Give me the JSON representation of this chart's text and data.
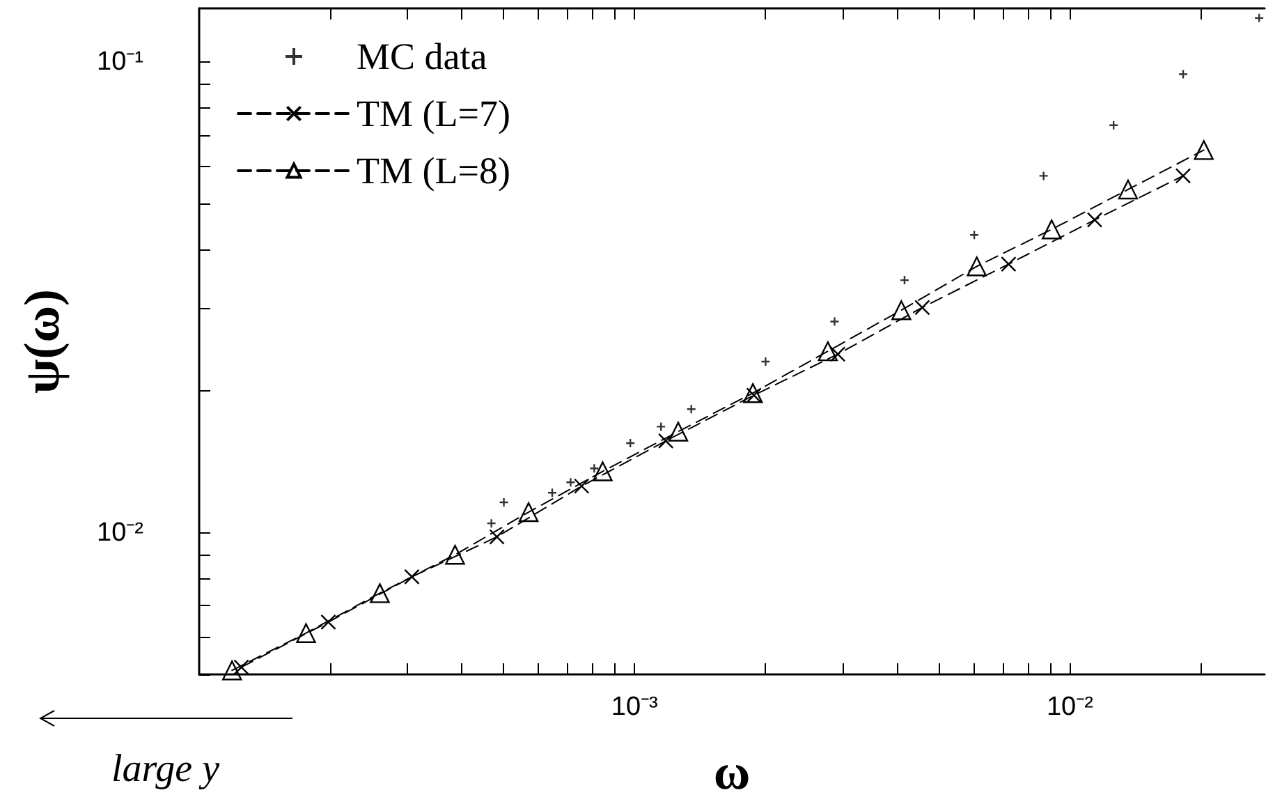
{
  "chart_data": {
    "type": "scatter",
    "xlabel": "ω",
    "ylabel": "ψ(ω)",
    "log": "xy",
    "grid": false,
    "legend": "top left",
    "xlim": [
      0.0001,
      0.028
    ],
    "ylim": [
      0.005,
      0.13
    ],
    "xticks": [
      {
        "value": 0.0002,
        "label": null
      },
      {
        "value": 0.0003,
        "label": null
      },
      {
        "value": 0.0004,
        "label": null
      },
      {
        "value": 0.0005,
        "label": null
      },
      {
        "value": 0.0006,
        "label": null
      },
      {
        "value": 0.0007,
        "label": null
      },
      {
        "value": 0.0008,
        "label": null
      },
      {
        "value": 0.0009,
        "label": null
      },
      {
        "value": 0.001,
        "label": "10⁻³"
      },
      {
        "value": 0.002,
        "label": null
      },
      {
        "value": 0.003,
        "label": null
      },
      {
        "value": 0.004,
        "label": null
      },
      {
        "value": 0.005,
        "label": null
      },
      {
        "value": 0.006,
        "label": null
      },
      {
        "value": 0.007,
        "label": null
      },
      {
        "value": 0.008,
        "label": null
      },
      {
        "value": 0.009,
        "label": null
      },
      {
        "value": 0.01,
        "label": "10⁻²"
      },
      {
        "value": 0.02,
        "label": null
      }
    ],
    "yticks": [
      {
        "value": 0.005,
        "label": null
      },
      {
        "value": 0.006,
        "label": null
      },
      {
        "value": 0.007,
        "label": null
      },
      {
        "value": 0.008,
        "label": null
      },
      {
        "value": 0.009,
        "label": null
      },
      {
        "value": 0.01,
        "label": "10⁻²"
      },
      {
        "value": 0.02,
        "label": null
      },
      {
        "value": 0.03,
        "label": null
      },
      {
        "value": 0.04,
        "label": null
      },
      {
        "value": 0.05,
        "label": null
      },
      {
        "value": 0.06,
        "label": null
      },
      {
        "value": 0.07,
        "label": null
      },
      {
        "value": 0.08,
        "label": null
      },
      {
        "value": 0.09,
        "label": null
      },
      {
        "value": 0.1,
        "label": "10⁻¹"
      }
    ],
    "annotations": [
      "large y"
    ],
    "series": [
      {
        "name": "MC data",
        "marker": "cross",
        "color": "#000000",
        "x": [
          0.000469,
          0.000501,
          0.000647,
          0.000713,
          0.000808,
          0.000978,
          0.00115,
          0.00135,
          0.002,
          0.00288,
          0.00417,
          0.00603,
          0.0087,
          0.0126,
          0.0182,
          0.0272
        ],
        "values": [
          0.01047,
          0.0116,
          0.01216,
          0.0128,
          0.0137,
          0.0155,
          0.0168,
          0.0183,
          0.0231,
          0.0281,
          0.0344,
          0.0429,
          0.0573,
          0.0734,
          0.0942,
          0.124
        ]
      },
      {
        "name": "TM (L=7)",
        "type": "line",
        "marker": "x",
        "line_style": "dashed",
        "color": "#000000",
        "x": [
          0.000125,
          0.000198,
          0.000308,
          0.000483,
          0.000756,
          0.00118,
          0.00188,
          0.00293,
          0.00458,
          0.00723,
          0.0114,
          0.0182
        ],
        "values": [
          0.00518,
          0.00646,
          0.00806,
          0.0098,
          0.01256,
          0.01567,
          0.01959,
          0.02395,
          0.0301,
          0.0372,
          0.0462,
          0.0573
        ]
      },
      {
        "name": "TM (L=8)",
        "type": "line",
        "marker": "triangle",
        "line_style": "dashed",
        "color": "#000000",
        "x": [
          0.000119,
          0.000176,
          0.00026,
          0.000387,
          0.000571,
          0.000845,
          0.00126,
          0.00187,
          0.00278,
          0.0041,
          0.00611,
          0.00908,
          0.0136,
          0.0203
        ],
        "values": [
          0.0051,
          0.00612,
          0.00744,
          0.00898,
          0.01106,
          0.0135,
          0.0164,
          0.0198,
          0.0243,
          0.0297,
          0.0368,
          0.0441,
          0.0536,
          0.065
        ]
      }
    ]
  }
}
